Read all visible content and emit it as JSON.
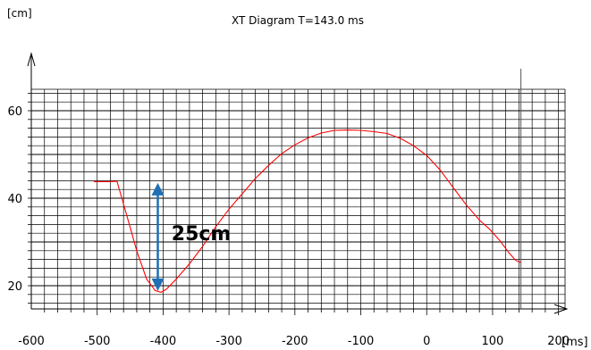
{
  "chart_data": {
    "type": "line",
    "title": "XT Diagram T=143.0 ms",
    "ylabel": "[cm]",
    "xlabel": "[ms]",
    "xlim": [
      -600,
      210
    ],
    "ylim": [
      13,
      68
    ],
    "x_ticks": [
      -600,
      -500,
      -400,
      -300,
      -200,
      -100,
      0,
      100,
      200
    ],
    "x_tick_labels": [
      "-600",
      "-500",
      "-400",
      "-300",
      "-200",
      "-100",
      "0",
      "100",
      "200"
    ],
    "y_ticks": [
      20,
      40,
      60
    ],
    "y_tick_labels": [
      "20",
      "40",
      "60"
    ],
    "grid": true,
    "cursor_x": 143,
    "series": [
      {
        "color": "#ff0000",
        "points": [
          [
            -505,
            43.8
          ],
          [
            -480,
            43.8
          ],
          [
            -470,
            43.9
          ],
          [
            -455,
            36
          ],
          [
            -440,
            28
          ],
          [
            -425,
            21.5
          ],
          [
            -412,
            18.9
          ],
          [
            -403,
            18.5
          ],
          [
            -395,
            19.2
          ],
          [
            -380,
            21.5
          ],
          [
            -360,
            25
          ],
          [
            -340,
            29
          ],
          [
            -320,
            33.5
          ],
          [
            -300,
            37.5
          ],
          [
            -280,
            41
          ],
          [
            -260,
            44.5
          ],
          [
            -240,
            47.5
          ],
          [
            -220,
            50.2
          ],
          [
            -200,
            52.2
          ],
          [
            -180,
            53.8
          ],
          [
            -160,
            54.9
          ],
          [
            -140,
            55.5
          ],
          [
            -120,
            55.6
          ],
          [
            -100,
            55.5
          ],
          [
            -80,
            55.2
          ],
          [
            -60,
            54.8
          ],
          [
            -40,
            53.7
          ],
          [
            -20,
            52
          ],
          [
            0,
            49.8
          ],
          [
            20,
            46.5
          ],
          [
            40,
            42.5
          ],
          [
            60,
            38.5
          ],
          [
            80,
            35
          ],
          [
            95,
            33
          ],
          [
            110,
            30.5
          ],
          [
            125,
            27.5
          ],
          [
            135,
            25.8
          ],
          [
            143,
            25.3
          ]
        ]
      }
    ],
    "annotation": {
      "text": "25cm",
      "color": "#1f6fb5",
      "arrow_x": -408,
      "arrow_from": 43.5,
      "arrow_to": 18.8,
      "text_x": -390,
      "text_y": 32
    }
  }
}
